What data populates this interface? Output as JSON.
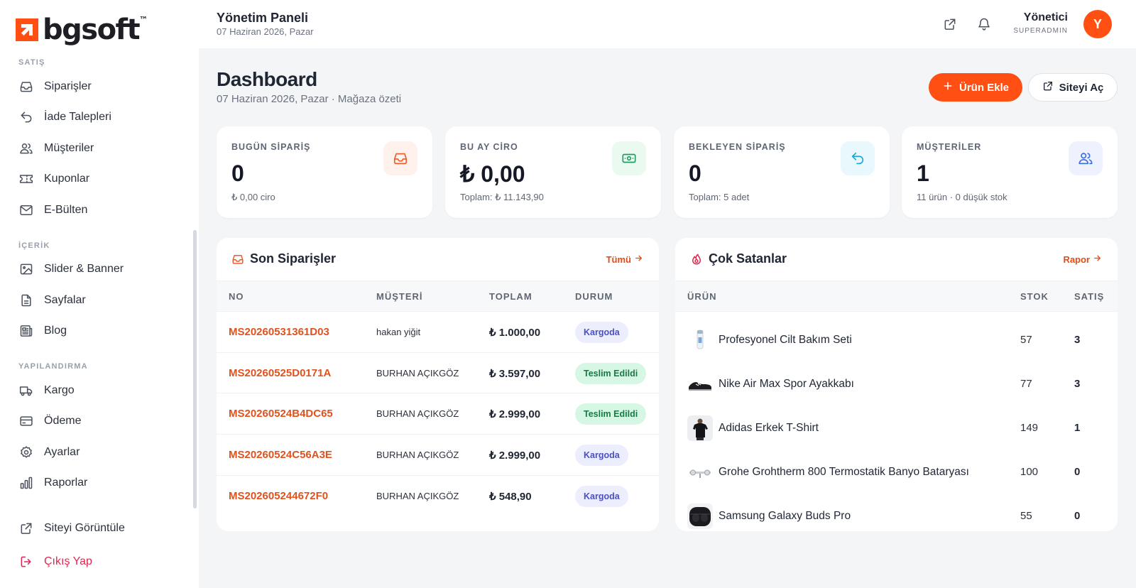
{
  "brand": {
    "name": "bgsoft",
    "tm": "™",
    "accent": "#ff4f12"
  },
  "sidebar": {
    "sections": [
      {
        "label": "SATIŞ",
        "items": [
          {
            "label": "Siparişler",
            "icon": "inbox-icon"
          },
          {
            "label": "İade Talepleri",
            "icon": "return-icon"
          },
          {
            "label": "Müşteriler",
            "icon": "users-icon"
          },
          {
            "label": "Kuponlar",
            "icon": "ticket-icon"
          },
          {
            "label": "E-Bülten",
            "icon": "mail-icon"
          }
        ]
      },
      {
        "label": "İÇERİK",
        "items": [
          {
            "label": "Slider & Banner",
            "icon": "image-icon"
          },
          {
            "label": "Sayfalar",
            "icon": "file-icon"
          },
          {
            "label": "Blog",
            "icon": "newspaper-icon"
          }
        ]
      },
      {
        "label": "YAPILANDIRMA",
        "items": [
          {
            "label": "Kargo",
            "icon": "truck-icon"
          },
          {
            "label": "Ödeme",
            "icon": "credit-card-icon"
          },
          {
            "label": "Ayarlar",
            "icon": "gear-icon"
          },
          {
            "label": "Raporlar",
            "icon": "bar-chart-icon"
          }
        ]
      }
    ],
    "footer": {
      "view_site": "Siteyi Görüntüle",
      "logout": "Çıkış Yap"
    }
  },
  "topbar": {
    "title": "Yönetim Paneli",
    "date": "07 Haziran 2026, Pazar",
    "user_name": "Yönetici",
    "user_role": "SUPERADMIN",
    "avatar_initial": "Y"
  },
  "main": {
    "title": "Dashboard",
    "subtitle": "07 Haziran 2026, Pazar · Mağaza özeti",
    "add_product": "Ürün Ekle",
    "open_site": "Siteyi Aç"
  },
  "stats": [
    {
      "label": "BUGÜN SİPARİŞ",
      "value": "0",
      "sub": "₺ 0,00 ciro",
      "icon": "inbox-icon",
      "bg": "#fff1ec",
      "color": "#f05a28"
    },
    {
      "label": "BU AY CİRO",
      "value": "₺ 0,00",
      "sub": "Toplam: ₺ 11.143,90",
      "icon": "banknote-icon",
      "bg": "#eafaf1",
      "color": "#1f9d5c"
    },
    {
      "label": "BEKLEYEN SİPARİŞ",
      "value": "0",
      "sub": "Toplam: 5 adet",
      "icon": "return-icon",
      "bg": "#e9f8fd",
      "color": "#1aa7d6"
    },
    {
      "label": "MÜŞTERİLER",
      "value": "1",
      "sub": "11 ürün · 0 düşük stok",
      "icon": "users-icon",
      "bg": "#edf2fe",
      "color": "#3b6fe0"
    }
  ],
  "orders": {
    "title": "Son Siparişler",
    "link": "Tümü",
    "columns": {
      "no": "NO",
      "customer": "MÜŞTERİ",
      "total": "TOPLAM",
      "status": "DURUM"
    },
    "rows": [
      {
        "no": "MS20260531361D03",
        "customer": "hakan yiğit",
        "total": "₺ 1.000,00",
        "status": "Kargoda",
        "type": "kargo"
      },
      {
        "no": "MS20260525D0171A",
        "customer": "BURHAN AÇIKGÖZ",
        "total": "₺ 3.597,00",
        "status": "Teslim Edildi",
        "type": "teslim"
      },
      {
        "no": "MS20260524B4DC65",
        "customer": "BURHAN AÇIKGÖZ",
        "total": "₺ 2.999,00",
        "status": "Teslim Edildi",
        "type": "teslim"
      },
      {
        "no": "MS20260524C56A3E",
        "customer": "BURHAN AÇIKGÖZ",
        "total": "₺ 2.999,00",
        "status": "Kargoda",
        "type": "kargo"
      },
      {
        "no": "MS202605244672F0",
        "customer": "BURHAN AÇIKGÖZ",
        "total": "₺ 548,90",
        "status": "Kargoda",
        "type": "kargo"
      }
    ]
  },
  "bestsellers": {
    "title": "Çok Satanlar",
    "link": "Rapor",
    "columns": {
      "product": "ÜRÜN",
      "stock": "STOK",
      "sales": "SATIŞ"
    },
    "rows": [
      {
        "name": "Profesyonel Cilt Bakım Seti",
        "stock": "57",
        "sales": "3",
        "thumb": "skincare-thumb"
      },
      {
        "name": "Nike Air Max Spor Ayakkabı",
        "stock": "77",
        "sales": "3",
        "thumb": "shoe-thumb"
      },
      {
        "name": "Adidas Erkek T-Shirt",
        "stock": "149",
        "sales": "1",
        "thumb": "tshirt-thumb"
      },
      {
        "name": "Grohe Grohtherm 800 Termostatik Banyo Bataryası",
        "stock": "100",
        "sales": "0",
        "thumb": "faucet-thumb"
      },
      {
        "name": "Samsung Galaxy Buds Pro",
        "stock": "55",
        "sales": "0",
        "thumb": "earbuds-thumb"
      }
    ]
  }
}
